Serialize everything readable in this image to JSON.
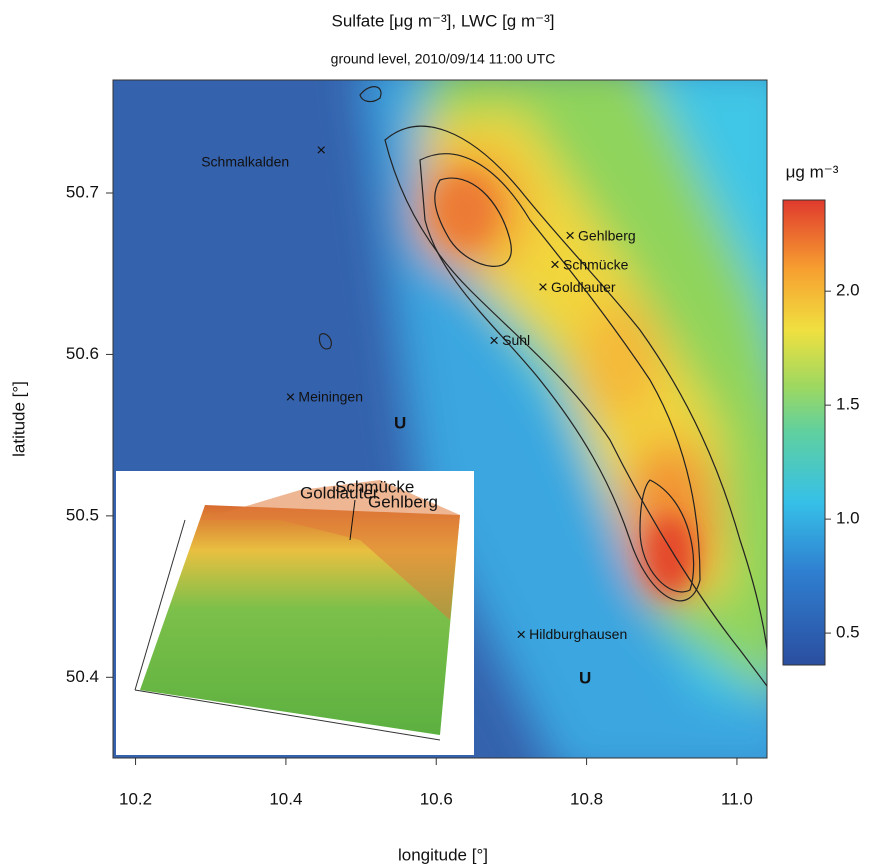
{
  "chart_data": {
    "type": "map",
    "title": "Sulfate [μg m⁻³], LWC [g m⁻³]",
    "subtitle": "ground level, 2010/09/14 11:00 UTC",
    "xlabel": "longitude [°]",
    "ylabel": "latitude [°]",
    "xlim": [
      10.17,
      11.04
    ],
    "ylim": [
      50.35,
      50.77
    ],
    "xticks": [
      10.2,
      10.4,
      10.6,
      10.8,
      {
        "value": 11,
        "label": "11.0"
      }
    ],
    "yticks": [
      50.7,
      50.6,
      50.5,
      50.4
    ],
    "places": [
      {
        "name": "Schmalkalden",
        "lon": 10.447,
        "lat": 50.726
      },
      {
        "name": "Gehlberg",
        "lon": 10.778,
        "lat": 50.673
      },
      {
        "name": "Schmücke",
        "lon": 10.758,
        "lat": 50.655
      },
      {
        "name": "Goldlauter",
        "lon": 10.742,
        "lat": 50.641
      },
      {
        "name": "Suhl",
        "lon": 10.677,
        "lat": 50.608
      },
      {
        "name": "Meiningen",
        "lon": 10.406,
        "lat": 50.573
      },
      {
        "name": "Hildburghausen",
        "lon": 10.713,
        "lat": 50.426
      }
    ],
    "annotations": [
      {
        "text": "U",
        "lon": 10.552,
        "lat": 50.557
      },
      {
        "text": "U",
        "lon": 10.798,
        "lat": 50.399
      }
    ],
    "colorbar": {
      "title": "μg m⁻³",
      "lim": [
        0.36,
        2.4
      ],
      "ticks": [
        0.5,
        {
          "value": 1,
          "label": "1.0"
        },
        1.5,
        {
          "value": 2,
          "label": "2.0"
        }
      ]
    },
    "inset": {
      "labels": [
        "Schmücke",
        "Goldlauter",
        "Gehlberg"
      ]
    }
  }
}
